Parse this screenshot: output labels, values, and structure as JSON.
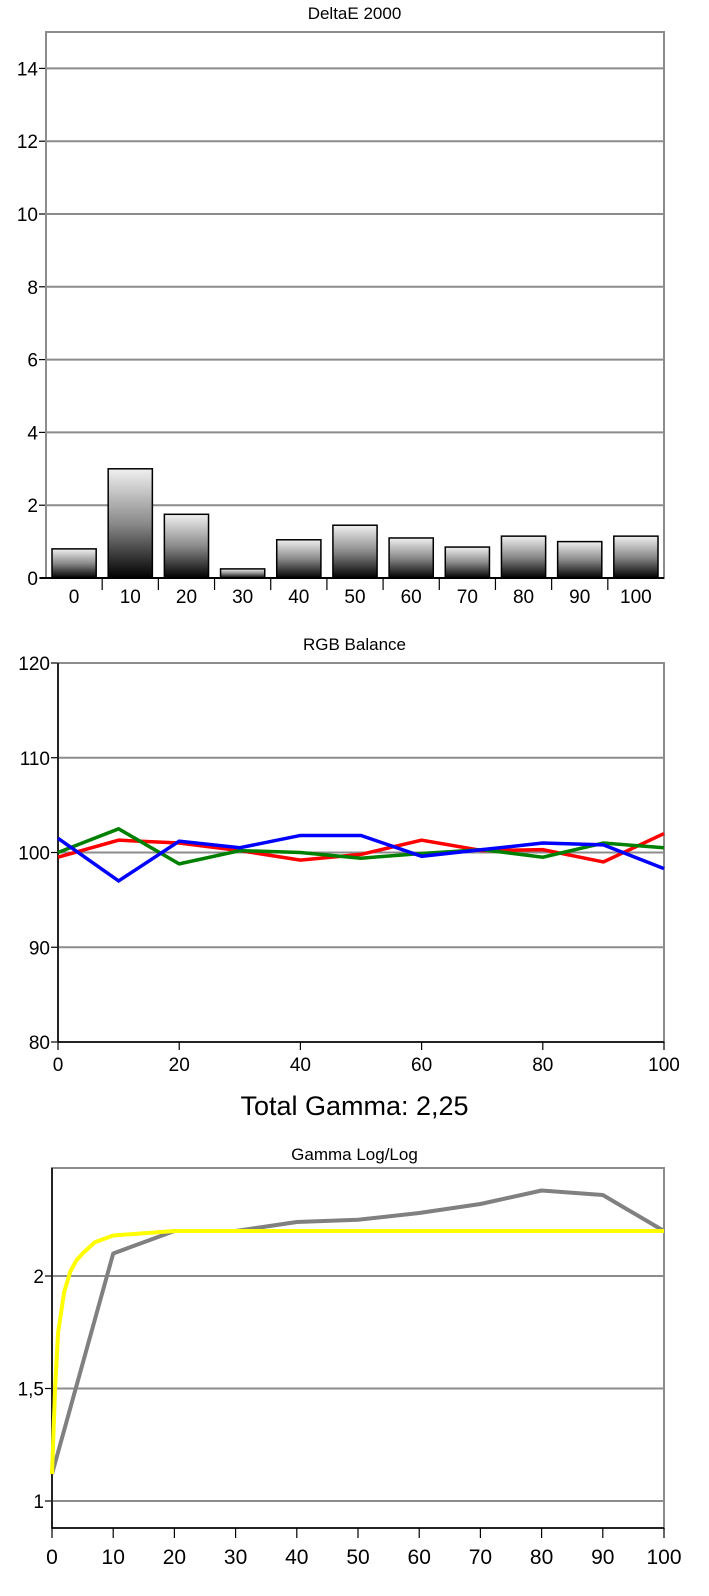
{
  "chart_data": [
    {
      "type": "bar",
      "title": "DeltaE 2000",
      "categories": [
        "0",
        "10",
        "20",
        "30",
        "40",
        "50",
        "60",
        "70",
        "80",
        "90",
        "100"
      ],
      "values": [
        0.8,
        3.0,
        1.75,
        0.25,
        1.05,
        1.45,
        1.1,
        0.85,
        1.15,
        1.0,
        1.15
      ],
      "ylim": [
        0,
        15
      ],
      "yticks": [
        "0",
        "2",
        "4",
        "6",
        "8",
        "10",
        "12",
        "14"
      ],
      "grid": true,
      "xlabel": "",
      "ylabel": ""
    },
    {
      "type": "line",
      "title": "RGB Balance",
      "x": [
        0,
        10,
        20,
        30,
        40,
        50,
        60,
        70,
        80,
        90,
        100
      ],
      "xticks": [
        "0",
        "20",
        "40",
        "60",
        "80",
        "100"
      ],
      "yticks": [
        "80",
        "90",
        "100",
        "110",
        "120"
      ],
      "ylim": [
        80,
        120
      ],
      "xlim": [
        0,
        100
      ],
      "grid": true,
      "series": [
        {
          "color": "#ff0000",
          "values": [
            99.5,
            101.3,
            101.0,
            100.2,
            99.2,
            99.8,
            101.3,
            100.2,
            100.3,
            99.0,
            102.0
          ]
        },
        {
          "color": "#008000",
          "values": [
            100.0,
            102.5,
            98.8,
            100.2,
            100.0,
            99.4,
            99.9,
            100.3,
            99.5,
            101.0,
            100.5
          ]
        },
        {
          "color": "#0000ff",
          "values": [
            101.5,
            97.0,
            101.2,
            100.5,
            101.8,
            101.8,
            99.6,
            100.3,
            101.0,
            100.8,
            98.3
          ]
        }
      ],
      "xlabel": "",
      "ylabel": ""
    },
    {
      "type": "line",
      "title": "Gamma Log/Log",
      "x": [
        0,
        10,
        20,
        30,
        40,
        50,
        60,
        70,
        80,
        90,
        100
      ],
      "xticks": [
        "0",
        "10",
        "20",
        "30",
        "40",
        "50",
        "60",
        "70",
        "80",
        "90",
        "100"
      ],
      "yticks": [
        "1",
        "1,5",
        "2"
      ],
      "ylim": [
        0.88,
        2.48
      ],
      "xlim": [
        0,
        100
      ],
      "grid": true,
      "series": [
        {
          "color": "#808080",
          "values": [
            1.12,
            2.1,
            2.2,
            2.2,
            2.24,
            2.25,
            2.28,
            2.32,
            2.38,
            2.36,
            2.2
          ]
        },
        {
          "color": "#ffff00",
          "x": [
            0,
            0.5,
            1,
            2,
            3,
            4,
            5,
            7,
            10,
            15,
            20,
            30,
            100
          ],
          "values": [
            1.12,
            1.5,
            1.75,
            1.93,
            2.02,
            2.07,
            2.1,
            2.15,
            2.18,
            2.19,
            2.2,
            2.2,
            2.2
          ]
        }
      ],
      "xlabel": "",
      "ylabel": ""
    }
  ],
  "headline": "Total Gamma: 2,25"
}
